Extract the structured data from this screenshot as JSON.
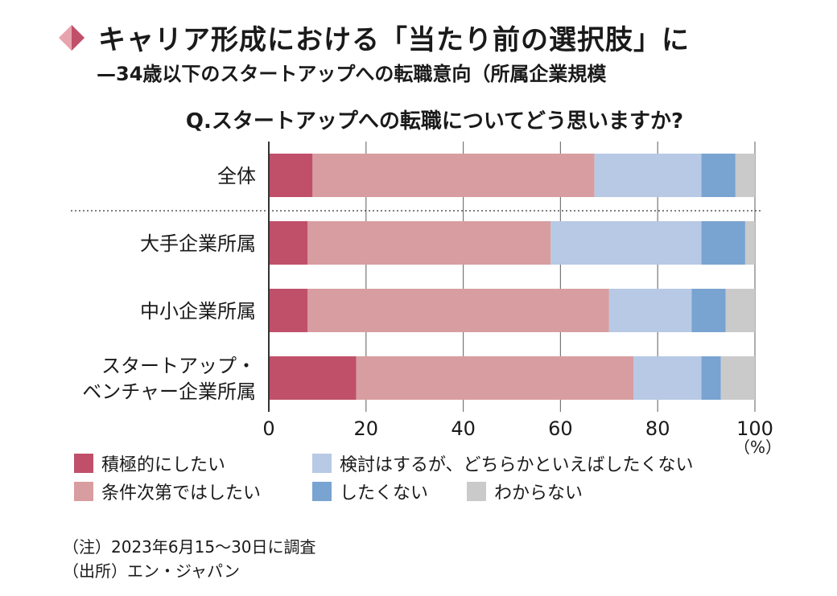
{
  "header": {
    "title": "キャリア形成における「当たり前の選択肢」に",
    "subtitle": "—34歳以下のスタートアップへの転職意向（所属企業規模",
    "question": "Q.スタートアップへの転職についてどう思いますか?"
  },
  "colors": {
    "diamond_light": "#e8a4ae",
    "diamond_dark": "#c0506a"
  },
  "chart_data": {
    "type": "bar",
    "orientation": "horizontal",
    "stacked": true,
    "categories": [
      "全体",
      "大手企業所属",
      "中小企業所属",
      "スタートアップ・\nベンチャー企業所属"
    ],
    "category_lines": [
      [
        "全体"
      ],
      [
        "大手企業所属"
      ],
      [
        "中小企業所属"
      ],
      [
        "スタートアップ・",
        "ベンチャー企業所属"
      ]
    ],
    "series": [
      {
        "name": "積極的にしたい",
        "color": "#c0506a",
        "values": [
          9,
          8,
          8,
          18
        ]
      },
      {
        "name": "条件次第ではしたい",
        "color": "#d89da0",
        "values": [
          58,
          50,
          62,
          57
        ]
      },
      {
        "name": "検討はするが、どちらかといえばしたくない",
        "color": "#b7c9e4",
        "values": [
          22,
          31,
          17,
          14
        ]
      },
      {
        "name": "したくない",
        "color": "#79a3d0",
        "values": [
          7,
          9,
          7,
          4
        ]
      },
      {
        "name": "わからない",
        "color": "#cacaca",
        "values": [
          4,
          2,
          6,
          7
        ]
      }
    ],
    "xlim": [
      0,
      100
    ],
    "xticks": [
      0,
      20,
      40,
      60,
      80,
      100
    ],
    "unit_label": "（%）",
    "grid": true,
    "separator_after_first": true,
    "legend_position": "bottom"
  },
  "notes": {
    "note": "（注）2023年6月15〜30日に調査",
    "source": "（出所）エン・ジャパン"
  }
}
